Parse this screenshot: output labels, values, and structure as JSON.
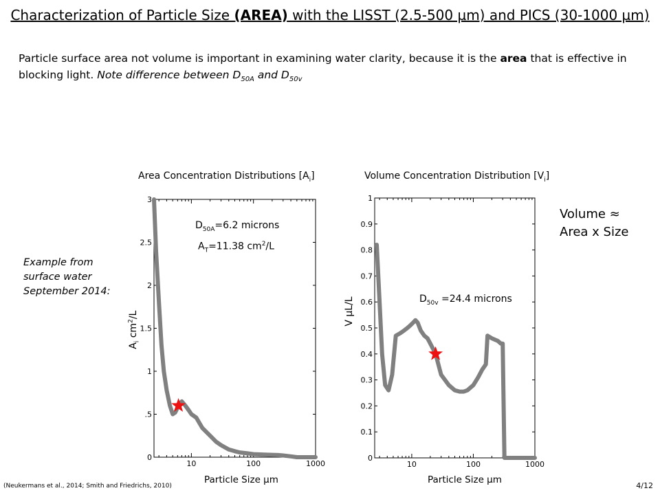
{
  "header": {
    "title_pre": "Characterization of Particle Size ",
    "title_bold": "(AREA)",
    "title_post": " with the LISST (2.5-500 µm) and PICS (30-1000 µm)"
  },
  "intro": {
    "text_pre": "Particle surface area not volume is important in examining water clarity, because it is the ",
    "text_bold": "area",
    "text_mid": " that is effective in blocking light. ",
    "note_pre": "Note difference between D",
    "note_sub1": "50A",
    "note_and": " and D",
    "note_sub2": "50v"
  },
  "example_note": "Example from surface water September 2014:",
  "volume_note": {
    "line1": "Volume ≈",
    "line2": "Area x Size"
  },
  "area_panel": {
    "title_pre": "Area Concentration Distributions [A",
    "title_sub": "i",
    "title_post": "]",
    "d50_pre": "D",
    "d50_sub": "50A",
    "d50_post": "=6.2 microns",
    "at_pre": "A",
    "at_sub": "T",
    "at_post": "=11.38 cm",
    "at_sup": "2",
    "at_end": "/L",
    "ylabel_pre": "A",
    "ylabel_sub": "i",
    "ylabel_post": " cm",
    "ylabel_sup": "2",
    "ylabel_end": "/L",
    "xlabel": "Particle Size µm"
  },
  "volume_panel": {
    "title_pre": "Volume Concentration Distribution [V",
    "title_sub": "i",
    "title_post": "]",
    "d50_pre": "D",
    "d50_sub": "50v",
    "d50_post": " =24.4 microns",
    "ylabel": "V  µL/L",
    "xlabel": "Particle Size  µm"
  },
  "footer": {
    "citation": "(Neukermans et al., 2014; Smith and Friedrichs, 2010)",
    "page": "4/12"
  },
  "chart_data": [
    {
      "type": "line",
      "xscale": "log",
      "xlim": [
        2.5,
        1000
      ],
      "ylim": [
        0,
        3
      ],
      "xticks": [
        10,
        100,
        1000
      ],
      "yticks": [
        0,
        0.5,
        1,
        1.5,
        2,
        2.5,
        3
      ],
      "ytick_labels": [
        "0",
        ".5",
        "1",
        "1.5",
        "2",
        "2.5",
        "3"
      ],
      "line_color": "#808080",
      "marker_color": "#ee1111",
      "x": [
        2.5,
        2.7,
        3.0,
        3.3,
        3.6,
        4.0,
        4.5,
        5.0,
        5.5,
        6.2,
        7.0,
        8.0,
        9.0,
        10,
        12,
        15,
        20,
        25,
        30,
        40,
        50,
        60,
        80,
        100,
        150,
        200,
        250,
        300,
        400,
        500,
        700,
        1000
      ],
      "y": [
        3.0,
        2.4,
        1.8,
        1.3,
        1.0,
        0.78,
        0.6,
        0.5,
        0.52,
        0.6,
        0.65,
        0.6,
        0.55,
        0.5,
        0.46,
        0.34,
        0.25,
        0.18,
        0.14,
        0.09,
        0.07,
        0.055,
        0.045,
        0.035,
        0.03,
        0.027,
        0.025,
        0.02,
        0.01,
        0.0,
        0.0,
        0.0
      ],
      "marker": {
        "x": 6.2,
        "y": 0.6
      }
    },
    {
      "type": "line",
      "xscale": "log",
      "xlim": [
        2.5,
        1000
      ],
      "ylim": [
        0,
        1
      ],
      "xticks": [
        10,
        100,
        1000
      ],
      "yticks": [
        0,
        0.1,
        0.2,
        0.3,
        0.4,
        0.5,
        0.6,
        0.7,
        0.8,
        0.9,
        1
      ],
      "ytick_labels": [
        "0",
        "0.1",
        "0.2",
        "0.3",
        "0.4",
        "0.5",
        "0.6",
        "0.7",
        "0.8",
        "0.9",
        "1"
      ],
      "line_color": "#808080",
      "marker_color": "#ee1111",
      "x": [
        2.7,
        3.0,
        3.3,
        3.7,
        4.2,
        4.8,
        5.5,
        6.5,
        7.5,
        8.5,
        9.5,
        10.5,
        11.5,
        12.5,
        14,
        16,
        18,
        20,
        24.4,
        30,
        40,
        50,
        60,
        70,
        80,
        100,
        120,
        140,
        160,
        170,
        200,
        250,
        280,
        300,
        320,
        1000
      ],
      "y": [
        0.82,
        0.6,
        0.4,
        0.28,
        0.26,
        0.32,
        0.47,
        0.48,
        0.49,
        0.5,
        0.51,
        0.52,
        0.53,
        0.52,
        0.49,
        0.47,
        0.46,
        0.44,
        0.4,
        0.32,
        0.28,
        0.26,
        0.255,
        0.255,
        0.26,
        0.28,
        0.31,
        0.34,
        0.36,
        0.47,
        0.46,
        0.45,
        0.44,
        0.44,
        0.0,
        0.0
      ],
      "marker": {
        "x": 24.4,
        "y": 0.4
      }
    }
  ]
}
